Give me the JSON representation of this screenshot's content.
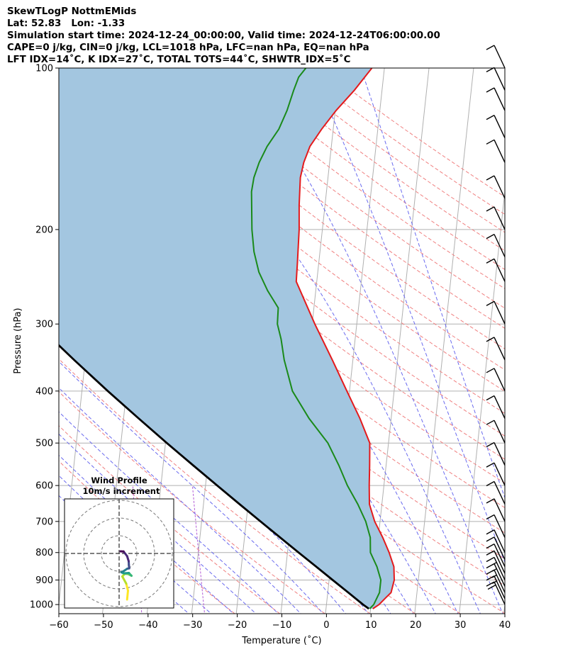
{
  "header": {
    "line1": "SkewTLogP NottmEMids",
    "line2": "Lat: 52.83   Lon: -1.33",
    "line3": "Simulation start time: 2024-12-24_00:00:00, Valid time: 2024-12-24T06:00:00.00",
    "line4": "CAPE=0 j/kg, CIN=0 j/kg, LCL=1018 hPa, LFC=nan hPa, EQ=nan hPa",
    "line5": "LFT IDX=14˚C, K IDX=27˚C, TOTAL TOTS=44˚C, SHWTR_IDX=5˚C"
  },
  "chart_data": {
    "type": "line",
    "chart_kind": "skew-t log-p",
    "xlabel": "Temperature (˚C)",
    "ylabel": "Pressure (hPa)",
    "xlim": [
      -60,
      40
    ],
    "ylim": [
      1040,
      100
    ],
    "y_scale": "log",
    "grid": true,
    "x_ticks": [
      -60,
      -50,
      -40,
      -30,
      -20,
      -10,
      0,
      10,
      20,
      30,
      40
    ],
    "y_ticks": [
      1000,
      900,
      800,
      700,
      600,
      500,
      400,
      300,
      200,
      100
    ],
    "colors": {
      "temperature": "#e41a1c",
      "dewpoint": "#1a8a1a",
      "parcel": "#000000",
      "shading": "#a3c6e0",
      "dry_adiabats": "#f08080",
      "moist_adiabats": "#6a6aef",
      "mixing_ratio": "#b25bd6",
      "isotherms": "#b0b0b0"
    },
    "series": [
      {
        "key": "temperature",
        "points": [
          [
            1018,
            10.5
          ],
          [
            1000,
            11.8
          ],
          [
            970,
            13.2
          ],
          [
            950,
            14.2
          ],
          [
            900,
            14.6
          ],
          [
            850,
            14.2
          ],
          [
            800,
            12.8
          ],
          [
            750,
            11.0
          ],
          [
            700,
            8.8
          ],
          [
            650,
            7.2
          ],
          [
            600,
            6.7
          ],
          [
            550,
            6.3
          ],
          [
            500,
            5.8
          ],
          [
            450,
            3.0
          ],
          [
            400,
            -0.6
          ],
          [
            350,
            -4.6
          ],
          [
            300,
            -9.4
          ],
          [
            250,
            -14.6
          ],
          [
            230,
            -14.8
          ],
          [
            200,
            -15.2
          ],
          [
            180,
            -15.8
          ],
          [
            160,
            -16.2
          ],
          [
            150,
            -15.8
          ],
          [
            140,
            -14.8
          ],
          [
            130,
            -12.6
          ],
          [
            120,
            -9.8
          ],
          [
            110,
            -6.2
          ],
          [
            100,
            -2.8
          ]
        ]
      },
      {
        "key": "dewpoint",
        "points": [
          [
            1018,
            9.8
          ],
          [
            1000,
            10.6
          ],
          [
            970,
            11.2
          ],
          [
            950,
            11.6
          ],
          [
            900,
            11.6
          ],
          [
            850,
            10.4
          ],
          [
            800,
            8.6
          ],
          [
            750,
            8.2
          ],
          [
            700,
            6.8
          ],
          [
            650,
            4.6
          ],
          [
            600,
            1.8
          ],
          [
            550,
            -0.6
          ],
          [
            500,
            -3.6
          ],
          [
            450,
            -8.4
          ],
          [
            400,
            -12.8
          ],
          [
            350,
            -15.4
          ],
          [
            320,
            -16.6
          ],
          [
            300,
            -17.8
          ],
          [
            280,
            -18.0
          ],
          [
            260,
            -20.8
          ],
          [
            240,
            -23.2
          ],
          [
            220,
            -24.8
          ],
          [
            200,
            -25.8
          ],
          [
            170,
            -26.8
          ],
          [
            160,
            -26.6
          ],
          [
            150,
            -25.8
          ],
          [
            140,
            -24.4
          ],
          [
            130,
            -22.2
          ],
          [
            120,
            -20.8
          ],
          [
            110,
            -19.8
          ],
          [
            104,
            -19.0
          ],
          [
            100,
            -17.6
          ]
        ]
      },
      {
        "key": "parcel",
        "points": [
          [
            1018,
            9.6
          ],
          [
            1000,
            8.2
          ],
          [
            950,
            4.6
          ],
          [
            900,
            0.8
          ],
          [
            850,
            -3.2
          ],
          [
            800,
            -7.5
          ],
          [
            750,
            -12.0
          ],
          [
            700,
            -16.8
          ],
          [
            650,
            -21.9
          ],
          [
            600,
            -27.4
          ],
          [
            550,
            -33.3
          ],
          [
            500,
            -39.7
          ],
          [
            450,
            -46.6
          ],
          [
            400,
            -54.2
          ],
          [
            350,
            -62.5
          ],
          [
            300,
            -71.8
          ],
          [
            250,
            -82.2
          ],
          [
            200,
            -94.2
          ],
          [
            150,
            -108.5
          ],
          [
            100,
            -127.0
          ]
        ]
      }
    ],
    "wind_barbs": [
      {
        "p": 1000,
        "speed": 20
      },
      {
        "p": 975,
        "speed": 17
      },
      {
        "p": 950,
        "speed": 15
      },
      {
        "p": 925,
        "speed": 15
      },
      {
        "p": 900,
        "speed": 15
      },
      {
        "p": 875,
        "speed": 13
      },
      {
        "p": 850,
        "speed": 12
      },
      {
        "p": 825,
        "speed": 10
      },
      {
        "p": 800,
        "speed": 10
      },
      {
        "p": 750,
        "speed": 10
      },
      {
        "p": 700,
        "speed": 10
      },
      {
        "p": 650,
        "speed": 10
      },
      {
        "p": 600,
        "speed": 10
      },
      {
        "p": 550,
        "speed": 10
      },
      {
        "p": 500,
        "speed": 10
      },
      {
        "p": 450,
        "speed": 10
      },
      {
        "p": 400,
        "speed": 10
      },
      {
        "p": 350,
        "speed": 10
      },
      {
        "p": 300,
        "speed": 10
      },
      {
        "p": 250,
        "speed": 10
      },
      {
        "p": 225,
        "speed": 10
      },
      {
        "p": 200,
        "speed": 10
      },
      {
        "p": 175,
        "speed": 10
      },
      {
        "p": 150,
        "speed": 10
      },
      {
        "p": 135,
        "speed": 10
      },
      {
        "p": 120,
        "speed": 10
      },
      {
        "p": 110,
        "speed": 10
      },
      {
        "p": 100,
        "speed": 10
      }
    ],
    "hodograph": {
      "title": "Wind Profile",
      "subtitle": "10m/s increment",
      "rings": [
        10,
        20,
        30
      ],
      "points": [
        [
          4.5,
          -26
        ],
        [
          5.0,
          -21
        ],
        [
          4.0,
          -17
        ],
        [
          1.8,
          -13
        ],
        [
          3.2,
          -11.5
        ],
        [
          5.0,
          -11.6
        ],
        [
          7.0,
          -12.6
        ],
        [
          5.5,
          -11.0
        ],
        [
          2.5,
          -11.2
        ],
        [
          1.2,
          -10.6
        ],
        [
          2.5,
          -10.0
        ],
        [
          4.6,
          -8.6
        ],
        [
          5.7,
          -8.4
        ],
        [
          5.5,
          -6.5
        ],
        [
          5.4,
          -4.4
        ],
        [
          4.5,
          -1.5
        ],
        [
          2.5,
          1.1
        ],
        [
          0.8,
          1.2
        ]
      ]
    }
  }
}
